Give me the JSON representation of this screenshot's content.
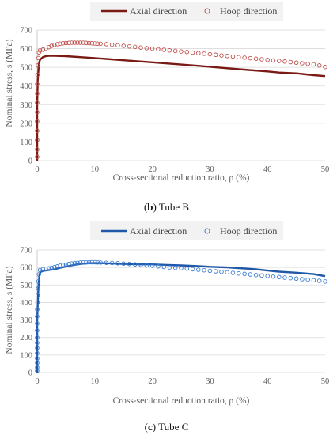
{
  "chart_data": [
    {
      "type": "line",
      "caption_letter": "b",
      "caption_text": "Tube B",
      "xlabel": "Cross-sectional reduction ratio, ρ  (%)",
      "ylabel": "Nominal stress, s (MPa)",
      "xlim": [
        0,
        50
      ],
      "ylim": [
        0,
        700
      ],
      "xticks": [
        0,
        10,
        20,
        30,
        40,
        50
      ],
      "yticks": [
        0,
        100,
        200,
        300,
        400,
        500,
        600,
        700
      ],
      "grid": "horizontal",
      "legend": "top",
      "series": [
        {
          "name": "Axial direction",
          "style": "line",
          "color": "#7a1a14",
          "x": [
            0,
            0,
            0.1,
            0.2,
            0.3,
            0.5,
            0.8,
            1.0,
            1.5,
            2,
            3,
            4,
            5,
            6,
            8,
            10,
            12,
            15,
            20,
            25,
            30,
            35,
            40,
            42,
            45,
            48,
            50
          ],
          "y": [
            0,
            300,
            430,
            480,
            520,
            540,
            550,
            555,
            560,
            562,
            562,
            561,
            560,
            558,
            554,
            550,
            545,
            538,
            527,
            515,
            503,
            490,
            478,
            472,
            468,
            458,
            453
          ]
        },
        {
          "name": "Hoop direction",
          "style": "markers",
          "color": "#c0504d",
          "x": [
            0,
            0,
            0,
            0,
            0,
            0,
            0,
            0,
            0,
            0.05,
            0.1,
            0.2,
            0.3,
            0.5,
            1.0,
            1.5,
            2.0,
            2.5,
            3.0,
            3.5,
            4.0,
            4.5,
            5.0,
            5.5,
            6.0,
            6.5,
            7.0,
            7.5,
            8.0,
            8.5,
            9.0,
            9.5,
            10.0,
            10.5,
            11.0,
            12.0,
            13.0,
            14.0,
            15.0,
            16.0,
            17.0,
            18.0,
            19.0,
            20.0,
            21.0,
            22.0,
            23.0,
            24.0,
            25.0,
            26.0,
            27.0,
            28.0,
            29.0,
            30.0,
            31.0,
            32.0,
            33.0,
            34.0,
            35.0,
            36.0,
            37.0,
            38.0,
            39.0,
            40.0,
            41.0,
            42.0,
            43.0,
            44.0,
            45.0,
            46.0,
            47.0,
            48.0,
            49.0,
            50.0
          ],
          "y": [
            20,
            60,
            110,
            160,
            210,
            260,
            310,
            360,
            410,
            460,
            510,
            550,
            580,
            590,
            595,
            600,
            608,
            615,
            620,
            624,
            627,
            629,
            630,
            631,
            632,
            632,
            632,
            632,
            632,
            631,
            630,
            629,
            628,
            627,
            626,
            624,
            621,
            618,
            615,
            612,
            609,
            606,
            603,
            600,
            597,
            594,
            591,
            588,
            585,
            582,
            579,
            576,
            573,
            570,
            567,
            564,
            561,
            558,
            555,
            552,
            549,
            546,
            543,
            540,
            537,
            534,
            531,
            528,
            525,
            522,
            519,
            516,
            510,
            502
          ]
        }
      ]
    },
    {
      "type": "line",
      "caption_letter": "c",
      "caption_text": "Tube C",
      "xlabel": "Cross-sectional reduction ratio, ρ  (%)",
      "ylabel": "Nominal stress, s (MPa)",
      "xlim": [
        0,
        50
      ],
      "ylim": [
        0,
        700
      ],
      "xticks": [
        0,
        10,
        20,
        30,
        40,
        50
      ],
      "yticks": [
        0,
        100,
        200,
        300,
        400,
        500,
        600,
        700
      ],
      "grid": "horizontal",
      "legend": "top",
      "series": [
        {
          "name": "Axial direction",
          "style": "line",
          "color": "#2058a8",
          "x": [
            0,
            0,
            0.2,
            0.4,
            0.6,
            1.0,
            2,
            3,
            4,
            5,
            6,
            7,
            8,
            9,
            10,
            12,
            15,
            18,
            20,
            22,
            25,
            28,
            30,
            33,
            35,
            38,
            40,
            42,
            45,
            48,
            50
          ],
          "y": [
            0,
            300,
            480,
            560,
            575,
            580,
            585,
            590,
            598,
            605,
            612,
            618,
            622,
            624,
            625,
            624,
            620,
            618,
            618,
            615,
            612,
            608,
            604,
            600,
            596,
            590,
            582,
            576,
            570,
            562,
            550
          ]
        },
        {
          "name": "Hoop direction",
          "style": "markers",
          "color": "#3a7bd5",
          "x": [
            0,
            0,
            0,
            0,
            0,
            0,
            0,
            0,
            0,
            0,
            0,
            0.02,
            0.05,
            0.1,
            0.15,
            0.2,
            0.3,
            0.5,
            1.0,
            1.5,
            2.0,
            2.5,
            3.0,
            3.5,
            4.0,
            4.5,
            5.0,
            5.5,
            6.0,
            6.5,
            7.0,
            7.5,
            8.0,
            8.5,
            9.0,
            9.5,
            10.0,
            10.5,
            11.0,
            12.0,
            13.0,
            14.0,
            15.0,
            16.0,
            17.0,
            18.0,
            19.0,
            20.0,
            21.0,
            22.0,
            23.0,
            24.0,
            25.0,
            26.0,
            27.0,
            28.0,
            29.0,
            30.0,
            31.0,
            32.0,
            33.0,
            34.0,
            35.0,
            36.0,
            37.0,
            38.0,
            39.0,
            40.0,
            41.0,
            42.0,
            43.0,
            44.0,
            45.0,
            46.0,
            47.0,
            48.0,
            49.0,
            50.0
          ],
          "y": [
            10,
            30,
            55,
            80,
            110,
            140,
            170,
            200,
            240,
            280,
            320,
            360,
            400,
            440,
            480,
            520,
            560,
            585,
            590,
            592,
            595,
            598,
            602,
            606,
            610,
            614,
            617,
            620,
            623,
            625,
            627,
            628,
            629,
            629,
            630,
            630,
            630,
            629,
            628,
            627,
            626,
            624,
            622,
            620,
            618,
            615,
            612,
            609,
            606,
            603,
            600,
            598,
            596,
            593,
            590,
            587,
            584,
            581,
            578,
            575,
            572,
            569,
            566,
            563,
            560,
            557,
            554,
            551,
            548,
            545,
            542,
            539,
            536,
            533,
            530,
            527,
            524,
            520
          ]
        }
      ]
    }
  ]
}
